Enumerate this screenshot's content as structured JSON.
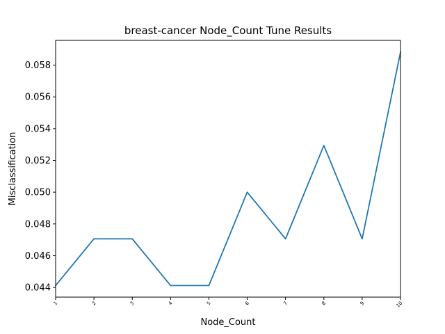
{
  "chart_data": {
    "type": "line",
    "title": "breast-cancer Node_Count Tune Results",
    "xlabel": "Node_Count",
    "ylabel": "Misclassification",
    "x": [
      1,
      2,
      3,
      4,
      5,
      6,
      7,
      8,
      9,
      10
    ],
    "x_tick_labels": [
      "1",
      "2",
      "3",
      "4",
      "5",
      "6",
      "7",
      "8",
      "9",
      "10"
    ],
    "y_tick_labels": [
      "0.044",
      "0.046",
      "0.048",
      "0.050",
      "0.052",
      "0.054",
      "0.056",
      "0.058"
    ],
    "series": [
      {
        "values": [
          0.04412,
          0.04706,
          0.04706,
          0.04412,
          0.04412,
          0.05,
          0.04706,
          0.05294,
          0.04706,
          0.05882
        ]
      }
    ],
    "xlim": [
      1,
      10
    ],
    "ylim": [
      0.04339,
      0.05956
    ],
    "grid": false,
    "line_color": "#1f77b4"
  }
}
